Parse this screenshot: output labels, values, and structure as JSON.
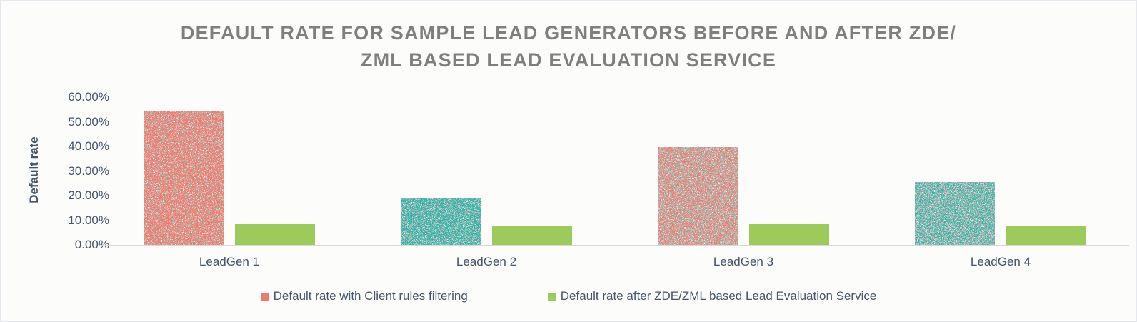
{
  "chart_data": {
    "type": "bar",
    "title": "DEFAULT RATE FOR SAMPLE LEAD GENERATORS BEFORE AND AFTER ZDE/ZML BASED LEAD EVALUATION SERVICE",
    "title_lines": [
      "DEFAULT RATE FOR SAMPLE LEAD GENERATORS BEFORE AND AFTER ZDE/",
      "ZML BASED LEAD EVALUATION SERVICE"
    ],
    "xlabel": "",
    "ylabel": "Default rate",
    "categories": [
      "LeadGen 1",
      "LeadGen 2",
      "LeadGen 3",
      "LeadGen 4"
    ],
    "series": [
      {
        "name": "Default rate with Client rules filtering",
        "values": [
          54.2,
          18.9,
          39.8,
          25.5
        ],
        "color": "#EF7A6E",
        "fill_style": "speckled"
      },
      {
        "name": "Default rate after ZDE/ZML based Lead Evaluation Service",
        "values": [
          8.4,
          7.9,
          8.4,
          7.7
        ],
        "color": "#9CCB5B",
        "fill_style": "solid"
      }
    ],
    "ylim": [
      0,
      60
    ],
    "ytick_step": 10,
    "yticks": [
      "60.00%",
      "50.00%",
      "40.00%",
      "30.00%",
      "20.00%",
      "10.00%",
      "0.00%"
    ],
    "grid": false,
    "legend_position": "bottom",
    "before_bar_textures": [
      {
        "base": "#EF7A6E",
        "speckle": "teal-light"
      },
      {
        "base": "#2FB2A9",
        "speckle": "salmon-light"
      },
      {
        "base": "#EF7A6E",
        "speckle": "teal-heavy"
      },
      {
        "base": "#35B3AA",
        "speckle": "salmon-heavy"
      }
    ]
  },
  "colors": {
    "salmon": "#EF7A6E",
    "teal": "#35B3AA",
    "green": "#9CCB5B",
    "axis_text": "#44546A",
    "title_text": "#7F7F7F",
    "axis_line": "#D9D9D9",
    "background": "#FCFDFB",
    "frame_border": "#E6E7F0"
  }
}
